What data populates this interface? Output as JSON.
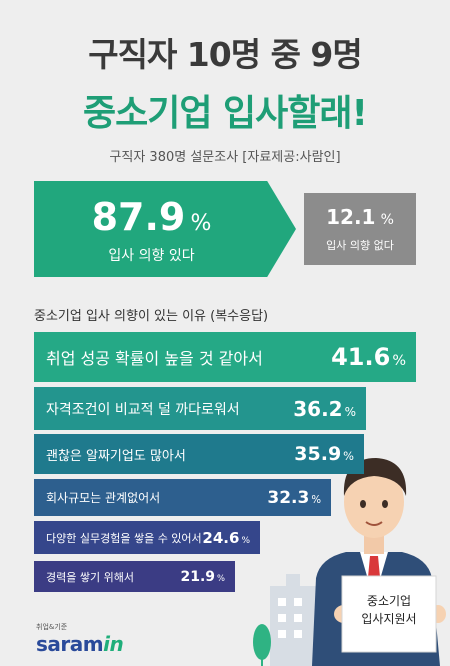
{
  "header": {
    "title_line1": "구직자 10명 중 9명",
    "title_line2": "중소기업 입사할래!",
    "source": "구직자 380명 설문조사 [자료제공:사람인]"
  },
  "summary": {
    "yes_value": "87.9",
    "yes_symbol": "%",
    "yes_label": "입사 의향 있다",
    "no_value": "12.1",
    "no_symbol": "%",
    "no_label": "입사 의향 없다"
  },
  "reasons_title": "중소기업 입사 의향이 있는 이유 (복수응답)",
  "card": {
    "line1": "중소기업",
    "line2": "입사지원서"
  },
  "logo": {
    "small": "취업&기준",
    "main": "saram",
    "accent": "in"
  },
  "colors": {
    "green": "#21a77d",
    "gray": "#8c8c8c",
    "bar_colors": [
      "#25a986",
      "#23958e",
      "#1f7a8d",
      "#2d5f8e",
      "#35468b",
      "#3b3c84"
    ]
  },
  "chart_data": {
    "type": "bar",
    "orientation": "horizontal",
    "title": "중소기업 입사 의향이 있는 이유 (복수응답)",
    "categories": [
      "취업 성공 확률이 높을 것 같아서",
      "자격조건이 비교적 덜 까다로워서",
      "괜찮은 알짜기업도 많아서",
      "회사규모는 관계없어서",
      "다양한 실무경험을 쌓을 수 있어서",
      "경력을 쌓기 위해서"
    ],
    "values": [
      41.6,
      36.2,
      35.9,
      32.3,
      24.6,
      21.9
    ],
    "value_labels": [
      "41.6",
      "36.2",
      "35.9",
      "32.3",
      "24.6",
      "21.9"
    ],
    "unit": "%",
    "xlim": [
      0,
      41.6
    ]
  }
}
